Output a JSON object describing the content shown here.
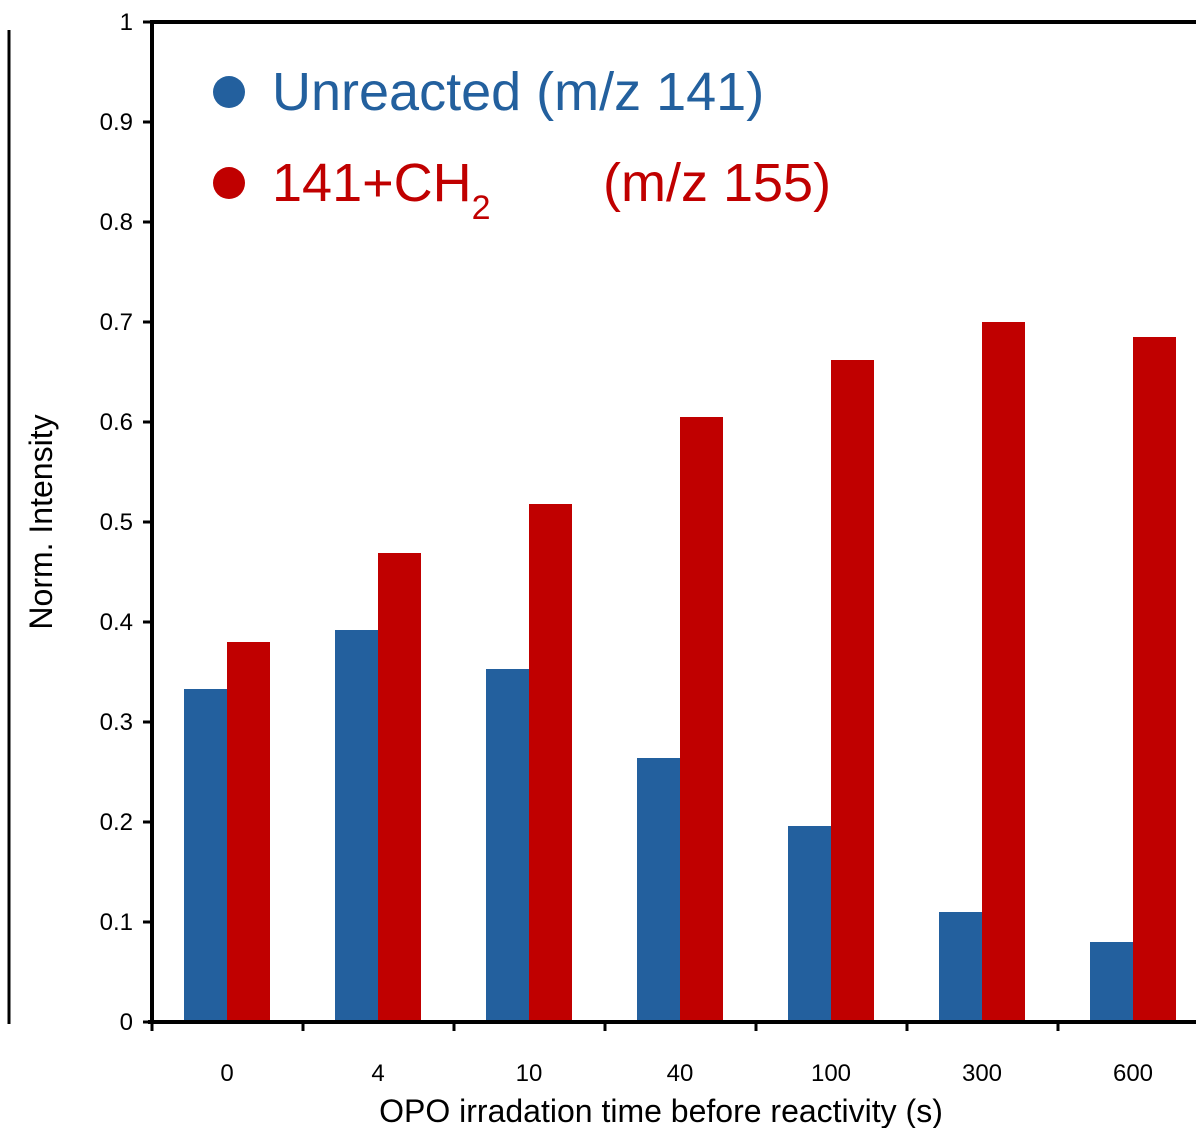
{
  "chart_data": {
    "type": "bar",
    "categories": [
      "0",
      "4",
      "10",
      "40",
      "100",
      "300",
      "600"
    ],
    "xlabel": "OPO irradation time before reactivity (s)",
    "ylabel": "Norm. Intensity",
    "ylim": [
      0,
      1
    ],
    "yticks": [
      "0",
      "0.1",
      "0.2",
      "0.3",
      "0.4",
      "0.5",
      "0.6",
      "0.7",
      "0.8",
      "0.9",
      "1"
    ],
    "grid": false,
    "legend_position": "top-left",
    "series": [
      {
        "label_main": "Unreacted (m/z 141)",
        "color": "#23609e",
        "values": [
          0.333,
          0.392,
          0.353,
          0.264,
          0.196,
          0.11,
          0.08
        ]
      },
      {
        "label_main": "141+CH",
        "label_sub": "2",
        "label_tail": "(m/z 155)",
        "color": "#c00000",
        "values": [
          0.38,
          0.469,
          0.518,
          0.605,
          0.662,
          0.7,
          0.685
        ]
      }
    ]
  }
}
